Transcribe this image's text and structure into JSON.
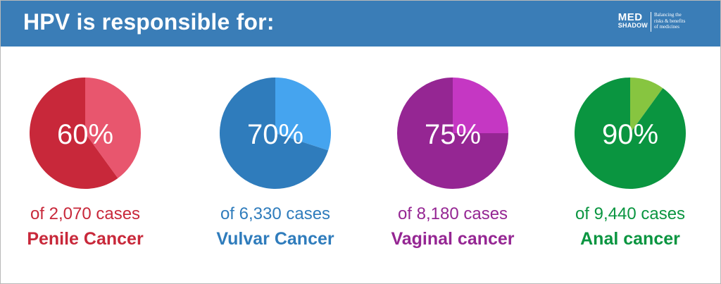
{
  "header": {
    "title": "HPV is responsible for:",
    "background": "#3a7db7"
  },
  "logo": {
    "line1": "MED",
    "line2": "SHADOW",
    "tagline": [
      "Balancing the",
      "risks & benefits",
      "of medicines"
    ]
  },
  "chart_data": {
    "type": "pie",
    "title": "HPV is responsible for:",
    "charts": [
      {
        "percent": 60,
        "label": "60%",
        "cases_text": "of 2,070 cases",
        "cancer": "Penile Cancer",
        "main_color": "#c8283a",
        "rest_color": "#e8566e"
      },
      {
        "percent": 70,
        "label": "70%",
        "cases_text": "of 6,330 cases",
        "cancer": "Vulvar Cancer",
        "main_color": "#2f7cbc",
        "rest_color": "#45a4ef"
      },
      {
        "percent": 75,
        "label": "75%",
        "cases_text": "of 8,180 cases",
        "cancer": "Vaginal cancer",
        "main_color": "#952693",
        "rest_color": "#c537c3"
      },
      {
        "percent": 90,
        "label": "90%",
        "cases_text": "of 9,440 cases",
        "cancer": "Anal cancer",
        "main_color": "#0a9540",
        "rest_color": "#87c540"
      }
    ]
  }
}
